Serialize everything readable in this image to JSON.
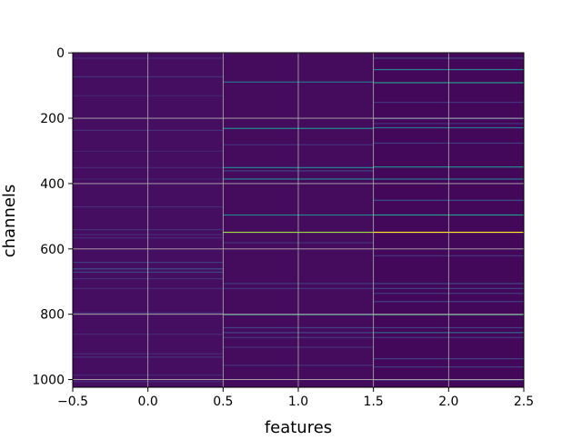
{
  "chart_data": {
    "type": "heatmap",
    "title": "",
    "xlabel": "features",
    "ylabel": "channels",
    "colormap": "viridis",
    "xlim": [
      -0.5,
      2.5
    ],
    "ylim": [
      1023.5,
      -0.5
    ],
    "xticks": [
      "−0.5",
      "0.0",
      "0.5",
      "1.0",
      "1.5",
      "2.0",
      "2.5"
    ],
    "xtick_values": [
      -0.5,
      0.0,
      0.5,
      1.0,
      1.5,
      2.0,
      2.5
    ],
    "yticks": [
      "0",
      "200",
      "400",
      "600",
      "800",
      "1000"
    ],
    "ytick_values": [
      0,
      200,
      400,
      600,
      800,
      1000
    ],
    "grid": true,
    "columns": [
      {
        "feature": 0,
        "base_value": 0.04,
        "highlights": [
          {
            "channel": 15,
            "value": 0.12
          },
          {
            "channel": 72,
            "value": 0.15
          },
          {
            "channel": 130,
            "value": 0.1
          },
          {
            "channel": 236,
            "value": 0.14
          },
          {
            "channel": 300,
            "value": 0.1
          },
          {
            "channel": 350,
            "value": 0.12
          },
          {
            "channel": 385,
            "value": 0.1
          },
          {
            "channel": 470,
            "value": 0.13
          },
          {
            "channel": 540,
            "value": 0.14
          },
          {
            "channel": 555,
            "value": 0.12
          },
          {
            "channel": 565,
            "value": 0.12
          },
          {
            "channel": 640,
            "value": 0.18
          },
          {
            "channel": 660,
            "value": 0.25
          },
          {
            "channel": 670,
            "value": 0.22
          },
          {
            "channel": 690,
            "value": 0.14
          },
          {
            "channel": 720,
            "value": 0.12
          },
          {
            "channel": 795,
            "value": 0.14
          },
          {
            "channel": 860,
            "value": 0.12
          },
          {
            "channel": 920,
            "value": 0.12
          },
          {
            "channel": 930,
            "value": 0.14
          },
          {
            "channel": 985,
            "value": 0.12
          },
          {
            "channel": 1005,
            "value": 0.13
          }
        ]
      },
      {
        "feature": 1,
        "base_value": 0.03,
        "highlights": [
          {
            "channel": 88,
            "value": 0.4
          },
          {
            "channel": 230,
            "value": 0.5
          },
          {
            "channel": 280,
            "value": 0.15
          },
          {
            "channel": 350,
            "value": 0.45
          },
          {
            "channel": 360,
            "value": 0.2
          },
          {
            "channel": 385,
            "value": 0.45
          },
          {
            "channel": 495,
            "value": 0.45
          },
          {
            "channel": 548,
            "value": 0.85
          },
          {
            "channel": 580,
            "value": 0.15
          },
          {
            "channel": 705,
            "value": 0.18
          },
          {
            "channel": 720,
            "value": 0.15
          },
          {
            "channel": 800,
            "value": 0.6
          },
          {
            "channel": 840,
            "value": 0.2
          },
          {
            "channel": 855,
            "value": 0.22
          },
          {
            "channel": 870,
            "value": 0.18
          },
          {
            "channel": 900,
            "value": 0.15
          },
          {
            "channel": 955,
            "value": 0.15
          }
        ]
      },
      {
        "feature": 2,
        "base_value": 0.02,
        "highlights": [
          {
            "channel": 15,
            "value": 0.22
          },
          {
            "channel": 50,
            "value": 0.45
          },
          {
            "channel": 90,
            "value": 0.55
          },
          {
            "channel": 150,
            "value": 0.15
          },
          {
            "channel": 200,
            "value": 0.2
          },
          {
            "channel": 215,
            "value": 0.15
          },
          {
            "channel": 228,
            "value": 0.4
          },
          {
            "channel": 275,
            "value": 0.18
          },
          {
            "channel": 348,
            "value": 0.5
          },
          {
            "channel": 385,
            "value": 0.4
          },
          {
            "channel": 450,
            "value": 0.25
          },
          {
            "channel": 495,
            "value": 0.55
          },
          {
            "channel": 548,
            "value": 1.0
          },
          {
            "channel": 620,
            "value": 0.15
          },
          {
            "channel": 705,
            "value": 0.22
          },
          {
            "channel": 720,
            "value": 0.2
          },
          {
            "channel": 735,
            "value": 0.18
          },
          {
            "channel": 760,
            "value": 0.2
          },
          {
            "channel": 800,
            "value": 0.65
          },
          {
            "channel": 840,
            "value": 0.2
          },
          {
            "channel": 855,
            "value": 0.35
          },
          {
            "channel": 870,
            "value": 0.18
          },
          {
            "channel": 935,
            "value": 0.2
          },
          {
            "channel": 960,
            "value": 0.18
          },
          {
            "channel": 1000,
            "value": 0.22
          }
        ]
      }
    ]
  }
}
